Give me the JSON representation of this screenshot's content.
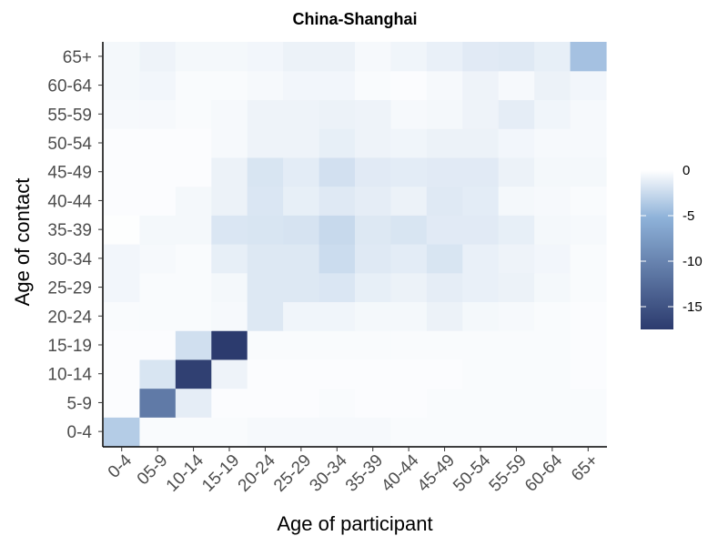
{
  "chart_data": {
    "type": "heatmap",
    "title": "China-Shanghai",
    "xlabel": "Age of participant",
    "ylabel": "Age of contact",
    "x_categories": [
      "0-4",
      "05-9",
      "10-14",
      "15-19",
      "20-24",
      "25-29",
      "30-34",
      "35-39",
      "40-44",
      "45-49",
      "50-54",
      "55-59",
      "60-64",
      "65+"
    ],
    "y_categories": [
      "0-4",
      "5-9",
      "10-14",
      "15-19",
      "20-24",
      "25-29",
      "30-34",
      "35-39",
      "40-44",
      "45-49",
      "50-54",
      "55-59",
      "60-64",
      "65+"
    ],
    "values": [
      [
        -3.5,
        -0.3,
        -0.3,
        -0.3,
        -0.4,
        -0.4,
        -0.4,
        -0.4,
        -0.3,
        -0.3,
        -0.3,
        -0.3,
        -0.3,
        -0.3
      ],
      [
        -0.2,
        -11,
        -1.2,
        -0.2,
        -0.2,
        -0.2,
        -0.3,
        -0.2,
        -0.2,
        -0.3,
        -0.3,
        -0.3,
        -0.3,
        -0.3
      ],
      [
        -0.2,
        -1.8,
        -17,
        -0.8,
        -0.2,
        -0.2,
        -0.2,
        -0.2,
        -0.2,
        -0.2,
        -0.3,
        -0.3,
        -0.3,
        -0.2
      ],
      [
        -0.2,
        -0.2,
        -2.2,
        -17.5,
        -0.3,
        -0.3,
        -0.3,
        -0.3,
        -0.3,
        -0.3,
        -0.3,
        -0.3,
        -0.3,
        -0.2
      ],
      [
        -0.3,
        -0.3,
        -0.3,
        -0.4,
        -1.6,
        -0.7,
        -0.7,
        -0.5,
        -0.5,
        -0.9,
        -0.5,
        -0.4,
        -0.3,
        -0.2
      ],
      [
        -0.6,
        -0.3,
        -0.3,
        -0.5,
        -1.6,
        -1.6,
        -1.7,
        -1.1,
        -0.9,
        -1.2,
        -1.0,
        -0.9,
        -0.5,
        -0.3
      ],
      [
        -0.6,
        -0.4,
        -0.3,
        -1.1,
        -1.6,
        -1.6,
        -2.4,
        -1.5,
        -1.3,
        -1.8,
        -1.0,
        -0.8,
        -0.6,
        -0.3
      ],
      [
        -0.1,
        -0.5,
        -0.5,
        -1.7,
        -1.8,
        -1.9,
        -2.6,
        -1.6,
        -1.8,
        -1.4,
        -1.4,
        -1.1,
        -0.5,
        -0.4
      ],
      [
        -0.2,
        -0.2,
        -0.5,
        -0.9,
        -1.7,
        -1.1,
        -1.5,
        -1.2,
        -0.9,
        -1.5,
        -1.3,
        -0.5,
        -0.4,
        -0.3
      ],
      [
        -0.2,
        -0.2,
        -0.2,
        -0.9,
        -1.8,
        -1.3,
        -2.1,
        -1.4,
        -1.3,
        -1.4,
        -1.4,
        -0.9,
        -0.5,
        -0.5
      ],
      [
        -0.2,
        -0.2,
        -0.2,
        -0.4,
        -0.8,
        -0.8,
        -1.1,
        -0.8,
        -0.7,
        -0.9,
        -0.9,
        -0.6,
        -0.4,
        -0.4
      ],
      [
        -0.4,
        -0.4,
        -0.3,
        -0.4,
        -0.8,
        -0.8,
        -0.9,
        -0.8,
        -0.4,
        -0.5,
        -0.8,
        -1.2,
        -0.7,
        -0.4
      ],
      [
        -0.5,
        -0.6,
        -0.3,
        -0.3,
        -0.4,
        -0.6,
        -0.6,
        -0.3,
        -0.2,
        -0.4,
        -0.8,
        -0.4,
        -0.9,
        -0.6
      ],
      [
        -0.5,
        -0.8,
        -0.5,
        -0.5,
        -0.6,
        -0.9,
        -0.9,
        -0.4,
        -0.7,
        -1.0,
        -1.4,
        -1.5,
        -1.1,
        -4.2
      ]
    ],
    "legend": {
      "title": "",
      "ticks": [
        0,
        -5,
        -10,
        -15
      ],
      "range": [
        -17.5,
        0
      ],
      "colors": [
        "#ffffff",
        "#8eb2d9",
        "#2c3b6e"
      ],
      "placement": "right"
    }
  }
}
